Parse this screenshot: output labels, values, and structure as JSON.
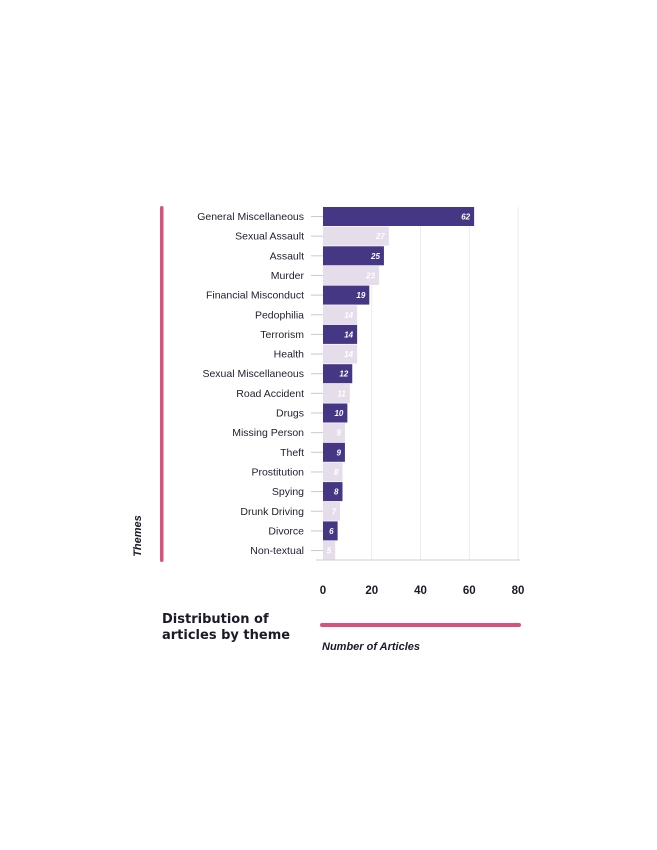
{
  "chart_data": {
    "type": "bar",
    "orientation": "horizontal",
    "title": "Distribution of articles by theme",
    "xlabel": "Number of Articles",
    "ylabel": "Themes",
    "xlim": [
      0,
      80
    ],
    "xticks": [
      0,
      20,
      40,
      60,
      80
    ],
    "grid": true,
    "legend": "none",
    "categories": [
      "General Miscellaneous",
      "Sexual Assault",
      "Assault",
      "Murder",
      "Financial Misconduct",
      "Pedophilia",
      "Terrorism",
      "Health",
      "Sexual Miscellaneous",
      "Road Accident",
      "Drugs",
      "Missing Person",
      "Theft",
      "Prostitution",
      "Spying",
      "Drunk Driving",
      "Divorce",
      "Non-textual"
    ],
    "values": [
      62,
      27,
      25,
      23,
      19,
      14,
      14,
      14,
      12,
      11,
      10,
      9,
      9,
      8,
      8,
      7,
      6,
      5
    ],
    "colors": {
      "dark_bar": "#463784",
      "light_bar": "#e6ddea",
      "dark_value_text": "#ffffff",
      "light_value_text": "#ffffff",
      "accent": "#d9527a",
      "grid": "#e6e6e6"
    }
  }
}
